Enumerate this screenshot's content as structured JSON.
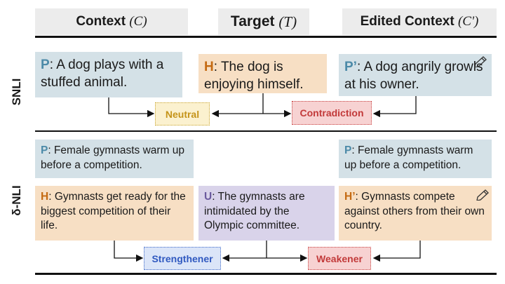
{
  "headers": {
    "context": "Context",
    "context_symbol": "(C)",
    "target": "Target",
    "target_symbol": "(T)",
    "edited": "Edited Context",
    "edited_symbol": "(C')"
  },
  "rows": {
    "snli_label": "SNLI",
    "dnli_label": "δ-NLI"
  },
  "snli": {
    "premise": {
      "tag": "P",
      "text": ": A dog plays with a stuffed animal."
    },
    "hypothesis": {
      "tag": "H",
      "text": ": The dog is enjoying himself."
    },
    "edited_premise": {
      "tag": "P’",
      "text": ": A dog angrily growls at his owner."
    },
    "label_original": "Neutral",
    "label_edited": "Contradiction"
  },
  "dnli": {
    "premise": {
      "tag": "P",
      "text": ": Female gymnasts warm up before a competition."
    },
    "hypothesis": {
      "tag": "H",
      "text": ": Gymnasts get ready for the biggest competition of their life."
    },
    "update": {
      "tag": "U",
      "text": ": The gymnasts are intimidated by the Olympic committee."
    },
    "edited_premise": {
      "tag": "P",
      "text": ": Female gymnasts warm up before a competition."
    },
    "edited_hypothesis": {
      "tag": "H’",
      "text": ": Gymnasts compete against others from their own country."
    },
    "label_original": "Strengthener",
    "label_edited": "Weakener"
  },
  "colors": {
    "premise_bg": "#d4e1e7",
    "hypothesis_bg": "#f7dfc4",
    "update_bg": "#d9d3ea",
    "neutral": "#c5941a",
    "contradiction": "#c23a3a",
    "strengthener": "#3059c0",
    "weakener": "#c23a3a"
  },
  "icons": [
    "pencil-icon"
  ]
}
